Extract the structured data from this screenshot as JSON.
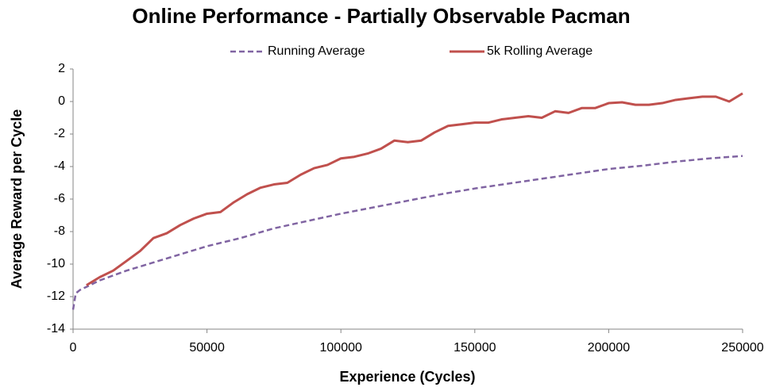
{
  "chart_data": {
    "type": "line",
    "title": "Online Performance - Partially Observable Pacman",
    "xlabel": "Experience (Cycles)",
    "ylabel": "Average Reward per Cycle",
    "xlim": [
      0,
      250000
    ],
    "xticks": [
      0,
      50000,
      100000,
      150000,
      200000,
      250000
    ],
    "ylim": [
      -14,
      2
    ],
    "yticks": [
      -14,
      -12,
      -10,
      -8,
      -6,
      -4,
      -2,
      0,
      2
    ],
    "grid": false,
    "legend": "top",
    "series": [
      {
        "name": "Running Average",
        "color": "#8064a2",
        "line_style": "dashed",
        "x": [
          0,
          1000,
          2500,
          5000,
          10000,
          20000,
          30000,
          40000,
          50000,
          62500,
          75000,
          87500,
          100000,
          112500,
          125000,
          137500,
          150000,
          162500,
          175000,
          187500,
          200000,
          212500,
          225000,
          237500,
          250000
        ],
        "values": [
          -12.8,
          -11.8,
          -11.6,
          -11.4,
          -11.0,
          -10.4,
          -9.9,
          -9.4,
          -8.9,
          -8.4,
          -7.8,
          -7.35,
          -6.9,
          -6.5,
          -6.1,
          -5.7,
          -5.35,
          -5.05,
          -4.75,
          -4.45,
          -4.15,
          -3.95,
          -3.7,
          -3.5,
          -3.35
        ]
      },
      {
        "name": "5k Rolling Average",
        "color": "#c0504d",
        "line_style": "solid",
        "x": [
          5000,
          10000,
          15000,
          20000,
          25000,
          30000,
          35000,
          40000,
          45000,
          50000,
          55000,
          60000,
          65000,
          70000,
          75000,
          80000,
          85000,
          90000,
          95000,
          100000,
          105000,
          110000,
          115000,
          120000,
          125000,
          130000,
          135000,
          140000,
          145000,
          150000,
          155000,
          160000,
          165000,
          170000,
          175000,
          180000,
          185000,
          190000,
          195000,
          200000,
          205000,
          210000,
          215000,
          220000,
          225000,
          230000,
          235000,
          240000,
          245000,
          250000
        ],
        "values": [
          -11.3,
          -10.8,
          -10.4,
          -9.8,
          -9.2,
          -8.4,
          -8.1,
          -7.6,
          -7.2,
          -6.9,
          -6.8,
          -6.2,
          -5.7,
          -5.3,
          -5.1,
          -5.0,
          -4.5,
          -4.1,
          -3.9,
          -3.5,
          -3.4,
          -3.2,
          -2.9,
          -2.4,
          -2.5,
          -2.4,
          -1.9,
          -1.5,
          -1.4,
          -1.3,
          -1.3,
          -1.1,
          -1.0,
          -0.9,
          -1.0,
          -0.6,
          -0.7,
          -0.4,
          -0.4,
          -0.1,
          -0.05,
          -0.2,
          -0.2,
          -0.1,
          0.1,
          0.2,
          0.3,
          0.3,
          0.0,
          0.5
        ]
      }
    ]
  }
}
